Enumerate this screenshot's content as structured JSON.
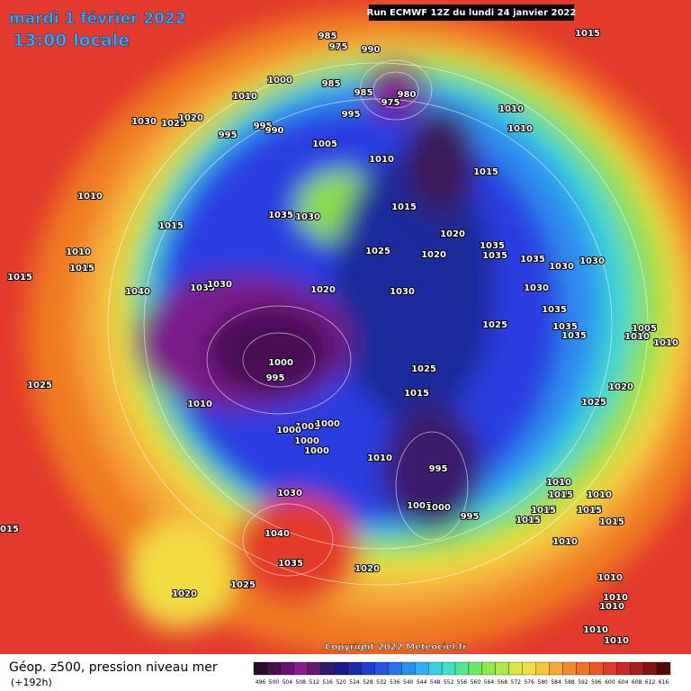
{
  "header": {
    "date": "mardi 1 février 2022",
    "time": "13:00 locale",
    "run": "Run ECMWF 12Z du lundi 24 janvier 2022"
  },
  "isobar_labels": [
    "1015",
    "985",
    "975",
    "990",
    "985",
    "985",
    "980",
    "975",
    "1000",
    "1010",
    "995",
    "1030",
    "1025",
    "1020",
    "995",
    "995",
    "990",
    "1005",
    "1010",
    "1010",
    "1010",
    "1015",
    "1010",
    "1035",
    "1030",
    "1015",
    "1015",
    "1020",
    "1035",
    "1010",
    "1015",
    "1025",
    "1020",
    "1035",
    "1035",
    "1030",
    "1030",
    "1015",
    "1040",
    "1035",
    "1030",
    "1020",
    "1030",
    "1030",
    "1035",
    "1025",
    "1035",
    "1035",
    "1010",
    "1005",
    "1010",
    "1000",
    "995",
    "1025",
    "1025",
    "1010",
    "1015",
    "1020",
    "1025",
    "1005",
    "1000",
    "1000",
    "1000",
    "1000",
    "1010",
    "995",
    "1010",
    "1015",
    "1010",
    "1030",
    "1005",
    "1000",
    "995",
    "1015",
    "1015",
    "1015",
    "1015",
    "1040",
    "1010",
    "1015",
    "1035",
    "1020",
    "1025",
    "1020",
    "1010",
    "1010",
    "1010",
    "1010",
    "1010"
  ],
  "footer": {
    "copyright": "Copyright 2022 Meteociel.fr",
    "legend_title": "Géop. z500, pression niveau mer",
    "lead": "(+192h)"
  },
  "colorbar": {
    "ticks": [
      496,
      500,
      504,
      508,
      512,
      516,
      520,
      524,
      528,
      532,
      536,
      540,
      544,
      548,
      552,
      556,
      560,
      564,
      568,
      572,
      576,
      580,
      584,
      588,
      592,
      596,
      600,
      604,
      608,
      612,
      616
    ]
  }
}
